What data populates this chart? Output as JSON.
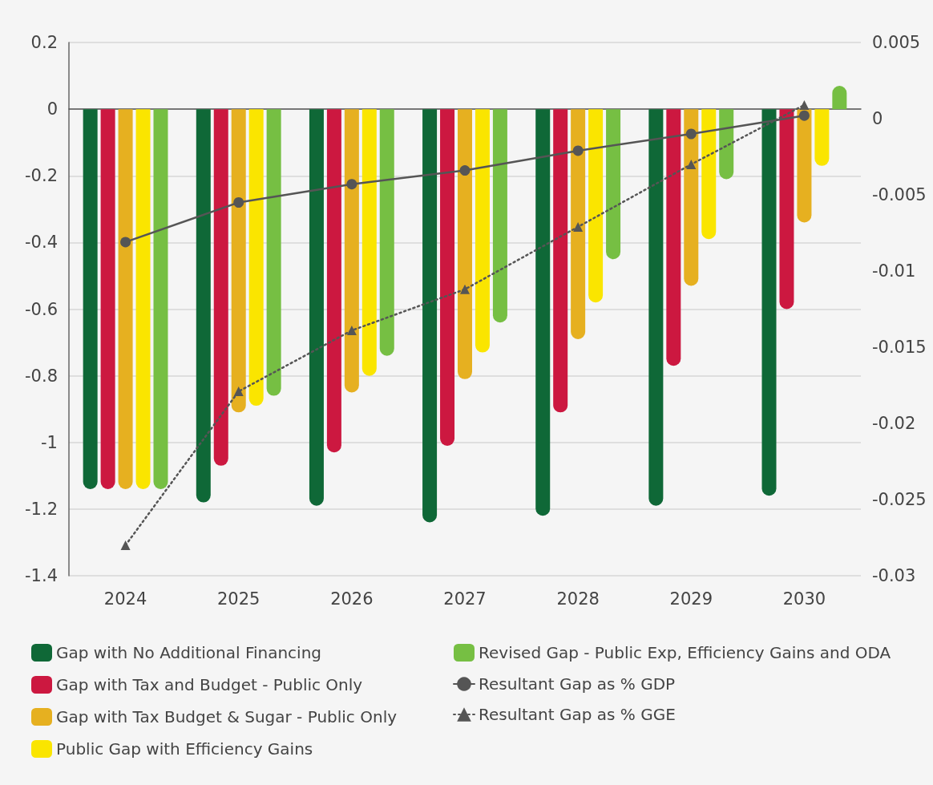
{
  "chart_data": {
    "type": "bar",
    "categories": [
      "2024",
      "2025",
      "2026",
      "2027",
      "2028",
      "2029",
      "2030"
    ],
    "series": [
      {
        "name": "Gap with No Additional Financing",
        "color": "#0f6837",
        "values": [
          -1.14,
          -1.18,
          -1.19,
          -1.24,
          -1.22,
          -1.19,
          -1.16
        ]
      },
      {
        "name": "Gap with Tax and Budget - Public Only",
        "color": "#cc1840",
        "values": [
          -1.14,
          -1.07,
          -1.03,
          -1.01,
          -0.91,
          -0.77,
          -0.6
        ]
      },
      {
        "name": "Gap with Tax Budget & Sugar - Public Only",
        "color": "#e6b020",
        "values": [
          -1.14,
          -0.91,
          -0.85,
          -0.81,
          -0.69,
          -0.53,
          -0.34
        ]
      },
      {
        "name": "Public Gap with Efficiency Gains",
        "color": "#fae500",
        "values": [
          -1.14,
          -0.89,
          -0.8,
          -0.73,
          -0.58,
          -0.39,
          -0.17
        ]
      },
      {
        "name": "Revised Gap - Public Exp, Efficiency Gains and ODA",
        "color": "#76bf43",
        "values": [
          -1.14,
          -0.86,
          -0.74,
          -0.64,
          -0.45,
          -0.21,
          0.07
        ]
      },
      {
        "name": "Resultant Gap as % GDP",
        "type": "line",
        "axis": "y2",
        "color": "#555555",
        "marker": "circle",
        "line_style": "solid",
        "values": [
          -0.0081,
          -0.0055,
          -0.0043,
          -0.0034,
          -0.0021,
          -0.001,
          0.0002
        ]
      },
      {
        "name": "Resultant Gap as % GGE",
        "type": "line",
        "axis": "y2",
        "color": "#555555",
        "marker": "triangle",
        "line_style": "dotted",
        "values": [
          -0.028,
          -0.0179,
          -0.0139,
          -0.0112,
          -0.0071,
          -0.003,
          0.0009
        ]
      }
    ],
    "ylim": [
      -1.4,
      0.2
    ],
    "yticks": [
      -1.4,
      -1.2,
      -1,
      -0.8,
      -0.6,
      -0.4,
      -0.2,
      0,
      0.2
    ],
    "y2lim": [
      -0.03,
      0.005
    ],
    "y2ticks": [
      -0.03,
      -0.025,
      -0.02,
      -0.015,
      -0.01,
      -0.005,
      0,
      0.005
    ],
    "grid": "y",
    "legend": "bottom"
  }
}
